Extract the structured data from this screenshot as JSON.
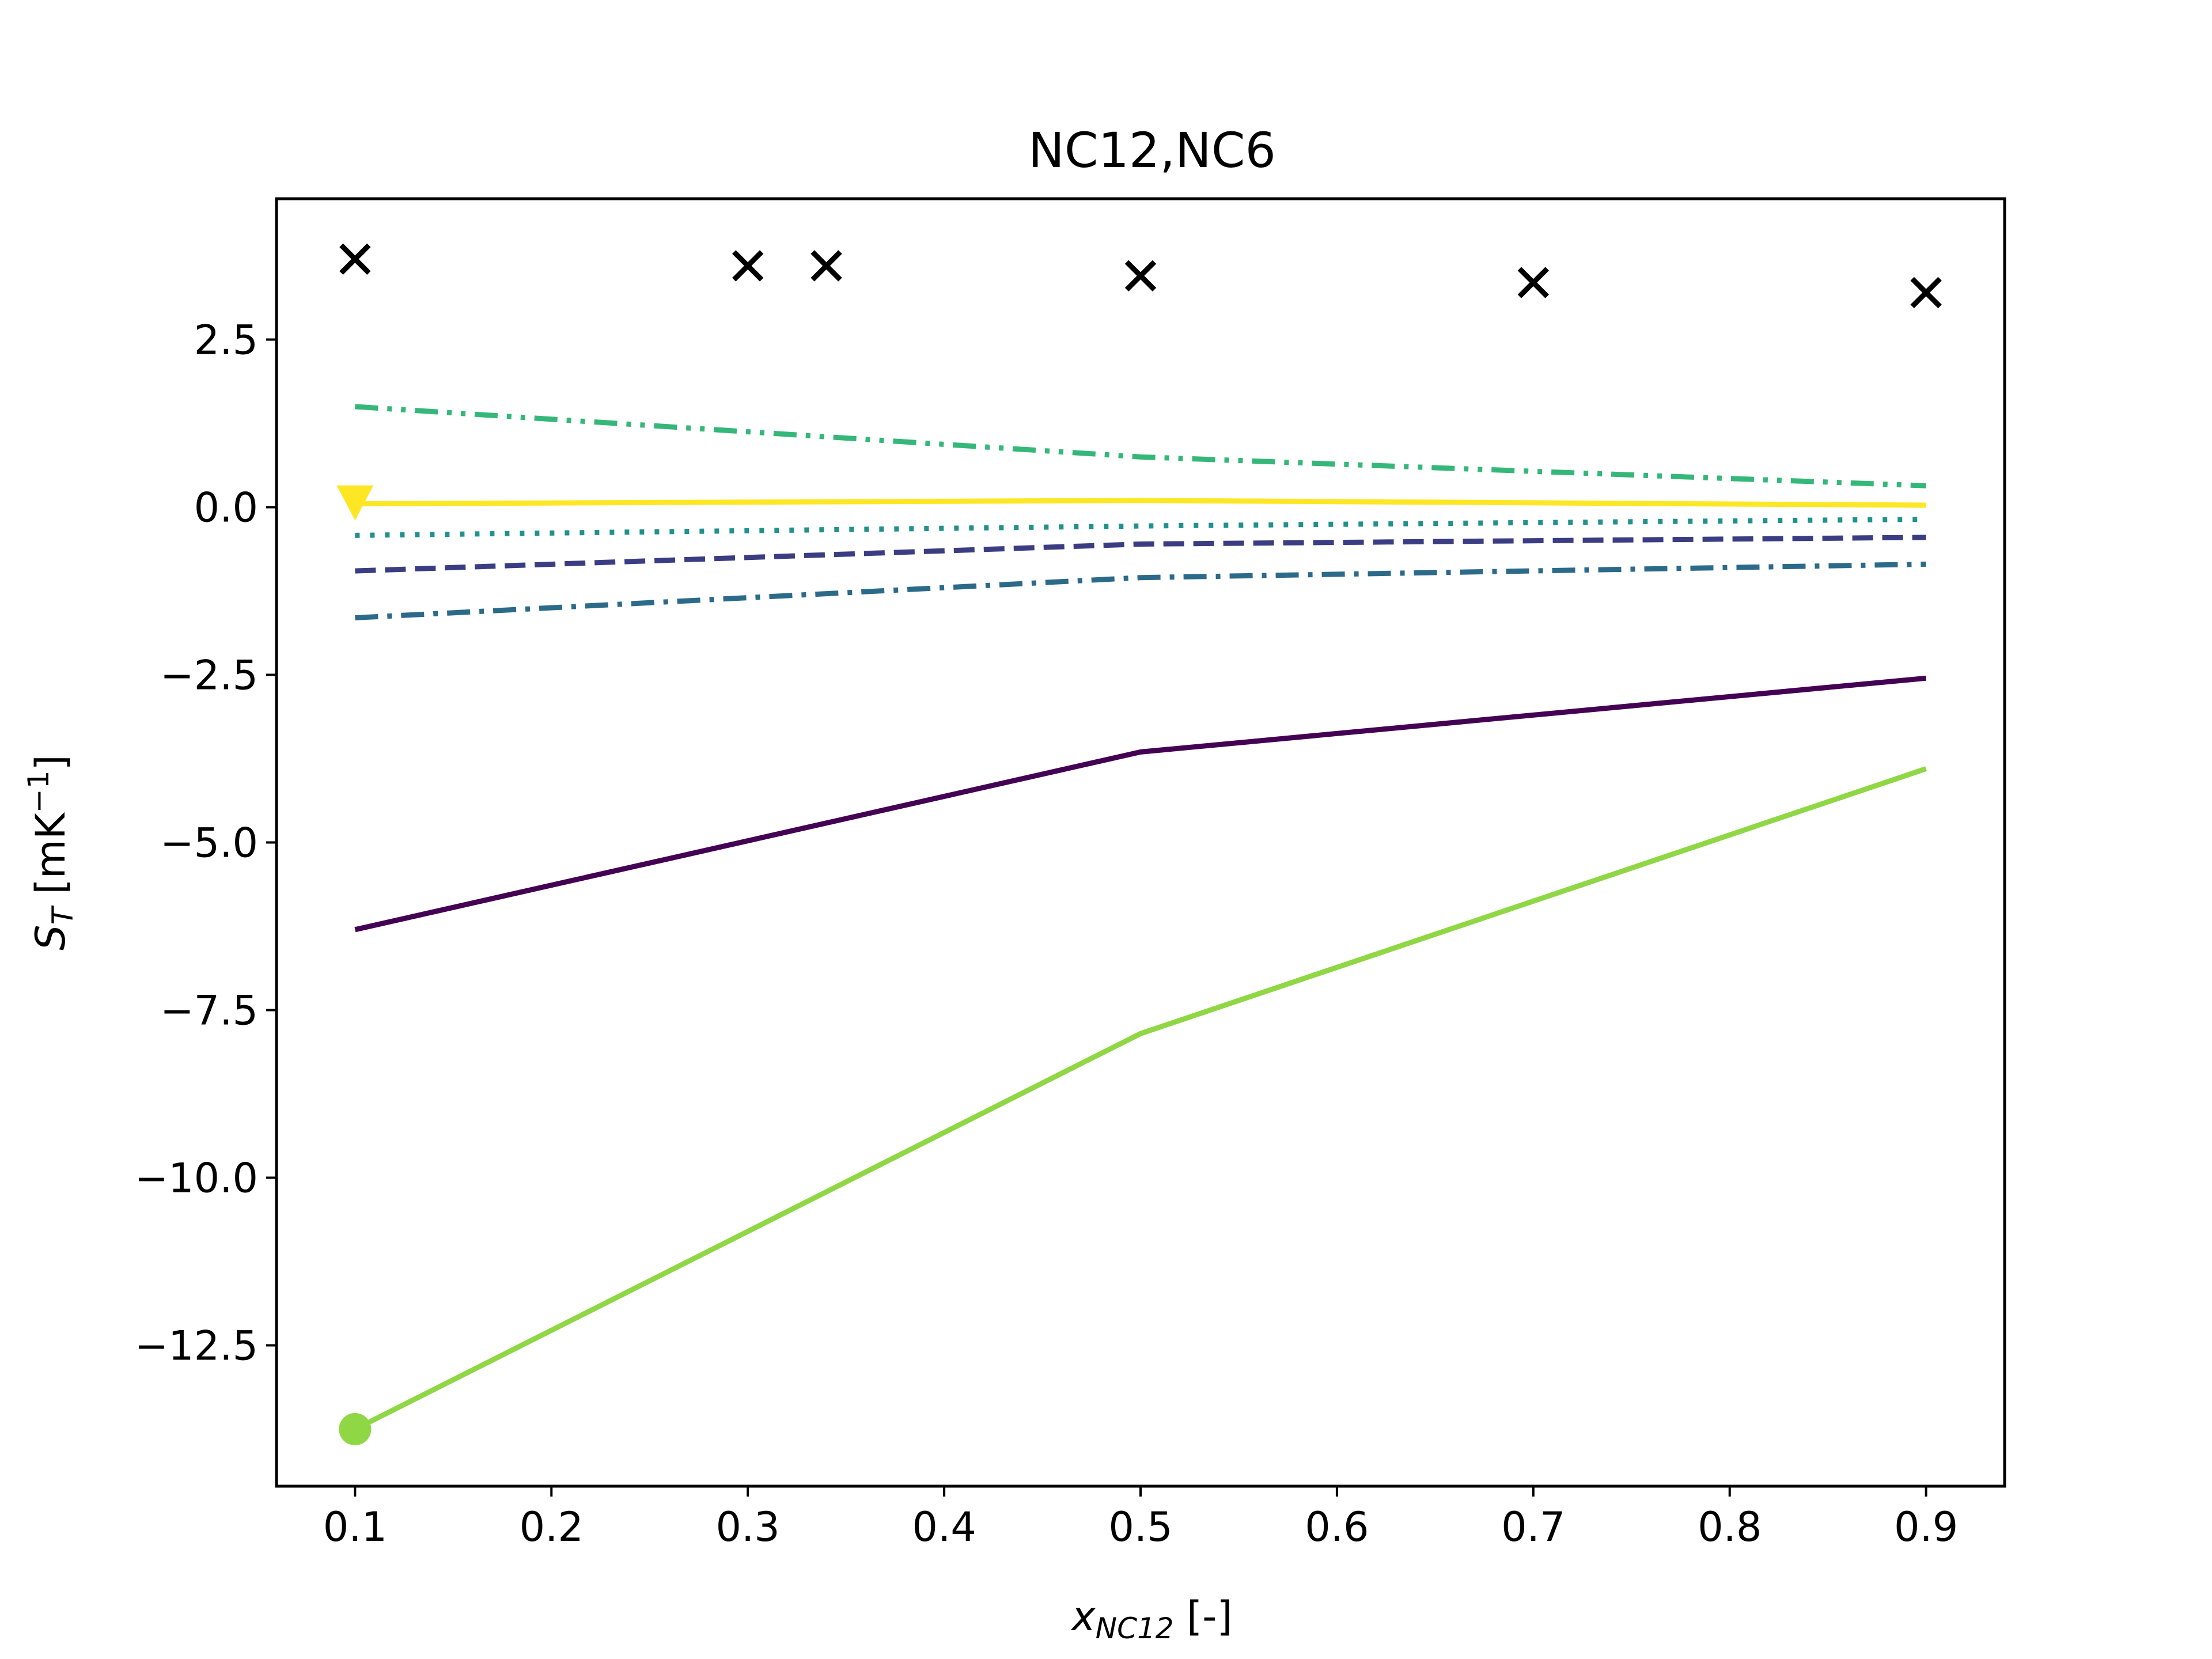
{
  "chart_data": {
    "type": "line",
    "title": "NC12,NC6",
    "xlabel_main": "x",
    "xlabel_sub": "NC12",
    "xlabel_tail": " [-]",
    "ylabel_main": "S",
    "ylabel_sub": "T",
    "ylabel_tail": " [mK",
    "ylabel_sup": "−1",
    "ylabel_close": "]",
    "xlim": [
      0.06,
      0.94
    ],
    "ylim": [
      -14.6,
      4.6
    ],
    "xticks": [
      0.1,
      0.2,
      0.3,
      0.4,
      0.5,
      0.6,
      0.7,
      0.8,
      0.9
    ],
    "xtick_labels": [
      "0.1",
      "0.2",
      "0.3",
      "0.4",
      "0.5",
      "0.6",
      "0.7",
      "0.8",
      "0.9"
    ],
    "yticks": [
      2.5,
      0.0,
      -2.5,
      -5.0,
      -7.5,
      -10.0,
      -12.5
    ],
    "ytick_labels": [
      "2.5",
      "0.0",
      "−2.5",
      "−5.0",
      "−7.5",
      "−10.0",
      "−12.5"
    ],
    "grid": false,
    "legend": "none",
    "series": [
      {
        "x": [
          0.1,
          0.5,
          0.9
        ],
        "y": [
          -6.3,
          -3.65,
          -2.55
        ],
        "color": "#440154",
        "dash": "solid"
      },
      {
        "x": [
          0.1,
          0.5,
          0.9
        ],
        "y": [
          -0.95,
          -0.55,
          -0.45
        ],
        "color": "#3b3d83",
        "dash": "dashed"
      },
      {
        "x": [
          0.1,
          0.5,
          0.9
        ],
        "y": [
          -1.65,
          -1.05,
          -0.85
        ],
        "color": "#2c6a8a",
        "dash": "dashdot"
      },
      {
        "x": [
          0.1,
          0.5,
          0.9
        ],
        "y": [
          -0.42,
          -0.28,
          -0.18
        ],
        "color": "#21918c",
        "dash": "dotted"
      },
      {
        "x": [
          0.1,
          0.5,
          0.9
        ],
        "y": [
          1.5,
          0.75,
          0.32
        ],
        "color": "#35b779",
        "dash": "dashdotdot"
      },
      {
        "x": [
          0.1,
          0.5,
          0.9
        ],
        "y": [
          -13.75,
          -7.85,
          -3.9
        ],
        "color": "#8fd744",
        "dash": "solid",
        "marker": "circle"
      },
      {
        "x": [
          0.1,
          0.5,
          0.9
        ],
        "y": [
          0.05,
          0.1,
          0.03
        ],
        "color": "#fde725",
        "dash": "solid",
        "marker": "triangle-down"
      }
    ],
    "scatter": {
      "marker": "x",
      "color": "#000000",
      "x": [
        0.1,
        0.3,
        0.34,
        0.5,
        0.7,
        0.9
      ],
      "y": [
        3.7,
        3.6,
        3.6,
        3.45,
        3.35,
        3.2
      ]
    }
  }
}
